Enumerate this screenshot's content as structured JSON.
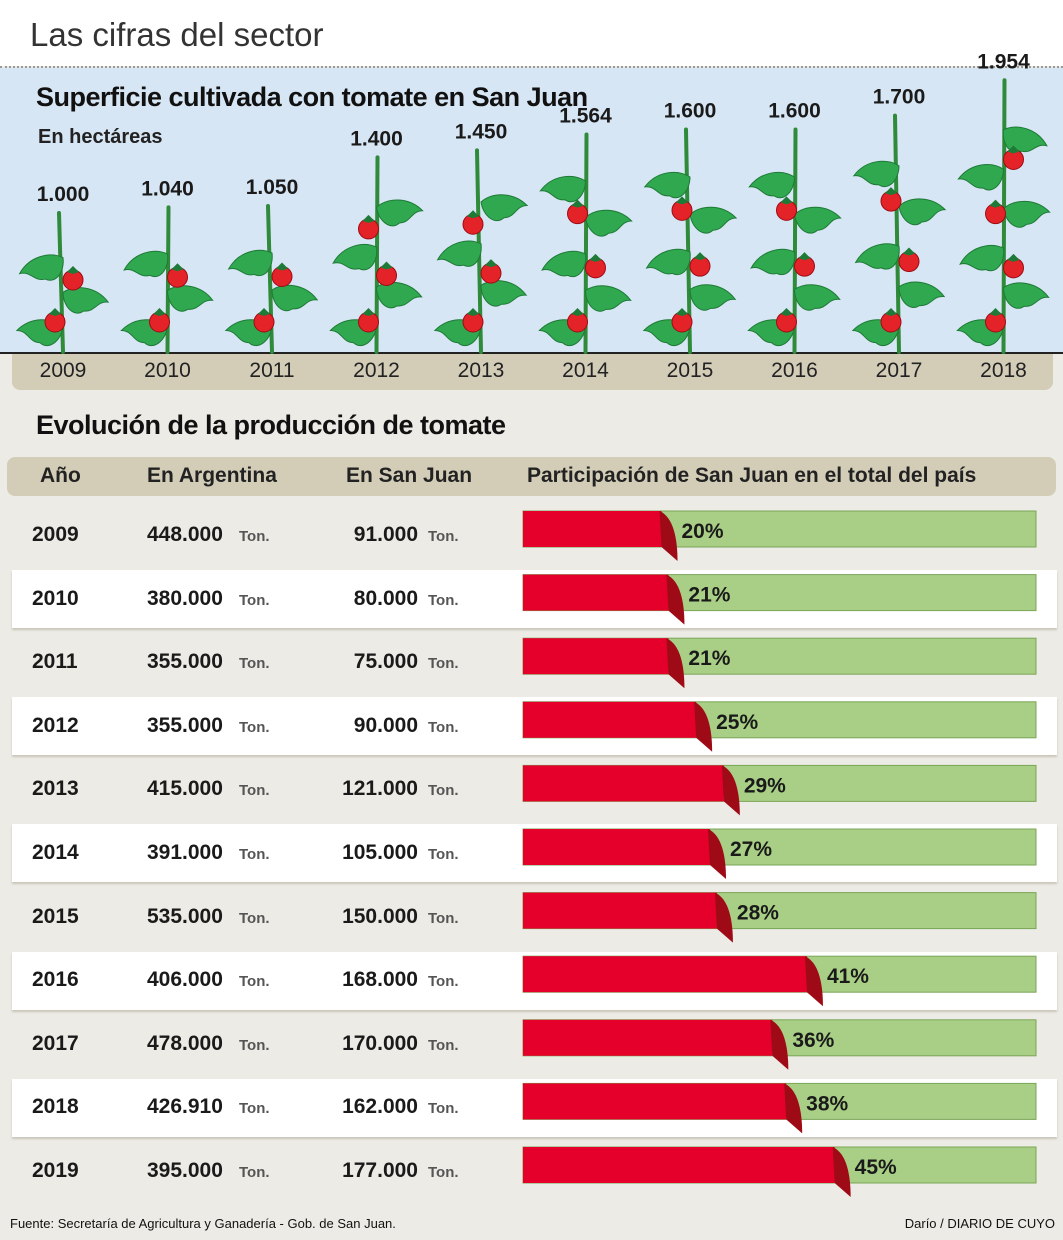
{
  "header": {
    "title": "Las cifras del sector"
  },
  "chart_data": [
    {
      "type": "bar",
      "title": "Superficie cultivada con tomate en San Juan",
      "subtitle": "En hectáreas",
      "categories": [
        "2009",
        "2010",
        "2011",
        "2012",
        "2013",
        "2014",
        "2015",
        "2016",
        "2017",
        "2018"
      ],
      "values": [
        1000,
        1040,
        1050,
        1400,
        1450,
        1564,
        1600,
        1600,
        1700,
        1954
      ],
      "labels": [
        "1.000",
        "1.040",
        "1.050",
        "1.400",
        "1.450",
        "1.564",
        "1.600",
        "1.600",
        "1.700",
        "1.954"
      ],
      "ylabel": "hectáreas"
    },
    {
      "type": "table",
      "title": "Evolución de la producción de tomate",
      "columns": [
        "Año",
        "En Argentina",
        "En San Juan",
        "Participación de San Juan en el total del país"
      ],
      "unit": "Ton.",
      "rows": [
        {
          "year": "2009",
          "argentina": "448.000",
          "san_juan": "91.000",
          "share": 20,
          "share_label": "20%"
        },
        {
          "year": "2010",
          "argentina": "380.000",
          "san_juan": "80.000",
          "share": 21,
          "share_label": "21%"
        },
        {
          "year": "2011",
          "argentina": "355.000",
          "san_juan": "75.000",
          "share": 21,
          "share_label": "21%"
        },
        {
          "year": "2012",
          "argentina": "355.000",
          "san_juan": "90.000",
          "share": 25,
          "share_label": "25%"
        },
        {
          "year": "2013",
          "argentina": "415.000",
          "san_juan": "121.000",
          "share": 29,
          "share_label": "29%"
        },
        {
          "year": "2014",
          "argentina": "391.000",
          "san_juan": "105.000",
          "share": 27,
          "share_label": "27%"
        },
        {
          "year": "2015",
          "argentina": "535.000",
          "san_juan": "150.000",
          "share": 28,
          "share_label": "28%"
        },
        {
          "year": "2016",
          "argentina": "406.000",
          "san_juan": "168.000",
          "share": 41,
          "share_label": "41%"
        },
        {
          "year": "2017",
          "argentina": "478.000",
          "san_juan": "170.000",
          "share": 36,
          "share_label": "36%"
        },
        {
          "year": "2018",
          "argentina": "426.910",
          "san_juan": "162.000",
          "share": 38,
          "share_label": "38%"
        },
        {
          "year": "2019",
          "argentina": "395.000",
          "san_juan": "177.000",
          "share": 45,
          "share_label": "45%"
        }
      ]
    }
  ],
  "colors": {
    "red": "#e4002b",
    "red_dark": "#9e0b16",
    "green": "#a8cf85",
    "leaf": "#2fa84f",
    "stem": "#2f8a3a",
    "tomato": "#e32327",
    "sky": "#d7e6f4",
    "band": "#d3cdb8"
  },
  "footer": {
    "source": "Fuente: Secretaría de Agricultura y Ganadería - Gob. de San Juan.",
    "credit": "Darío / DIARIO DE CUYO"
  }
}
